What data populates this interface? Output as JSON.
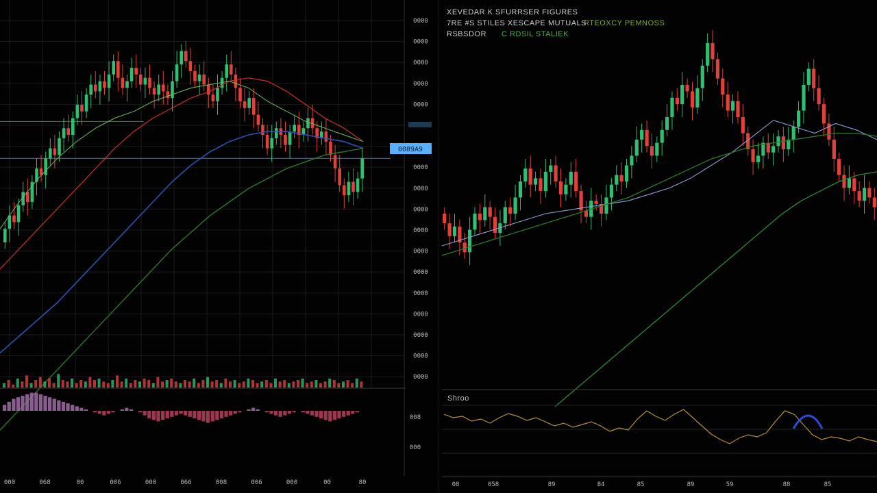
{
  "colors": {
    "background": "#020202",
    "grid": "#1b1b1b",
    "up": "#2fbf71",
    "down": "#e0413a",
    "ma_blue": "#2d54b3",
    "ma_green": "#2f7a2a",
    "ma_red": "#c9302c",
    "ma_light": "#8c9fd6",
    "osc": "#b8923c",
    "price_tag": "#5ab0ff"
  },
  "right_header": {
    "line1": "XEVEDAR K SFURRSER FIGURES",
    "line2a": "7RE #S STILES XESCAPE MUTUALS",
    "line2b": "RTEOXCY PEMNOSS",
    "line3a": "RSBSDOR",
    "line3b": "C RDSIL STALIEK"
  },
  "right_panel_label": "Shroo",
  "chart_data": [
    {
      "type": "candlestick",
      "title": "",
      "price_tag": "0089A9",
      "y_tick_labels": [
        "0000",
        "0000",
        "0000",
        "0000",
        "0000",
        "00000",
        "0000",
        "0000",
        "0000",
        "0000",
        "0000",
        "0000",
        "0000",
        "0000",
        "0000",
        "0000",
        "0000",
        "0000"
      ],
      "osc_tick_labels": [
        "008",
        "000"
      ],
      "x_tick_labels": [
        "000",
        "068",
        "00",
        "006",
        "000",
        "066",
        "008",
        "006",
        "000",
        "00",
        "80"
      ],
      "ylim": [
        0,
        100
      ],
      "grid": true,
      "candles": [
        [
          38,
          42
        ],
        [
          42,
          46
        ],
        [
          46,
          44
        ],
        [
          44,
          49
        ],
        [
          49,
          53
        ],
        [
          53,
          50
        ],
        [
          50,
          56
        ],
        [
          56,
          60
        ],
        [
          60,
          58
        ],
        [
          58,
          63
        ],
        [
          63,
          66
        ],
        [
          66,
          64
        ],
        [
          64,
          69
        ],
        [
          69,
          72
        ],
        [
          72,
          70
        ],
        [
          70,
          75
        ],
        [
          75,
          79
        ],
        [
          79,
          77
        ],
        [
          77,
          82
        ],
        [
          82,
          85
        ],
        [
          85,
          83
        ],
        [
          83,
          86
        ],
        [
          86,
          84
        ],
        [
          84,
          88
        ],
        [
          88,
          92
        ],
        [
          92,
          87
        ],
        [
          87,
          84
        ],
        [
          84,
          86
        ],
        [
          86,
          90
        ],
        [
          90,
          88
        ],
        [
          88,
          85
        ],
        [
          85,
          87
        ],
        [
          87,
          84
        ],
        [
          84,
          82
        ],
        [
          82,
          85
        ],
        [
          85,
          83
        ],
        [
          83,
          81
        ],
        [
          81,
          86
        ],
        [
          86,
          91
        ],
        [
          91,
          95
        ],
        [
          95,
          92
        ],
        [
          92,
          89
        ],
        [
          89,
          86
        ],
        [
          86,
          88
        ],
        [
          88,
          85
        ],
        [
          85,
          82
        ],
        [
          82,
          80
        ],
        [
          80,
          84
        ],
        [
          84,
          87
        ],
        [
          87,
          91
        ],
        [
          91,
          88
        ],
        [
          88,
          84
        ],
        [
          84,
          80
        ],
        [
          80,
          78
        ],
        [
          78,
          81
        ],
        [
          81,
          76
        ],
        [
          76,
          73
        ],
        [
          73,
          70
        ],
        [
          70,
          66
        ],
        [
          66,
          69
        ],
        [
          69,
          72
        ],
        [
          72,
          70
        ],
        [
          70,
          67
        ],
        [
          67,
          71
        ],
        [
          71,
          73
        ],
        [
          73,
          70
        ],
        [
          70,
          72
        ],
        [
          72,
          75
        ],
        [
          75,
          72
        ],
        [
          72,
          69
        ],
        [
          69,
          71
        ],
        [
          71,
          68
        ],
        [
          68,
          64
        ],
        [
          64,
          60
        ],
        [
          60,
          55
        ],
        [
          55,
          52
        ],
        [
          52,
          56
        ],
        [
          56,
          53
        ],
        [
          53,
          57
        ],
        [
          57,
          63
        ]
      ],
      "ma_red": [
        30,
        36,
        42,
        48,
        54,
        60,
        66,
        71,
        75,
        78,
        81,
        83,
        86,
        87,
        86,
        83,
        79,
        75,
        72,
        68
      ],
      "ma_light": [
        42,
        50,
        57,
        63,
        68,
        72,
        75,
        77,
        80,
        82,
        84,
        85,
        86,
        84,
        80,
        77,
        74,
        72,
        70,
        68
      ],
      "ma_blue": [
        5,
        10,
        15,
        20,
        26,
        32,
        38,
        44,
        50,
        56,
        61,
        65,
        68,
        70,
        71,
        71,
        70,
        69,
        68,
        66
      ],
      "ma_green": [
        -18,
        -12,
        -6,
        0,
        6,
        12,
        18,
        24,
        30,
        36,
        41,
        46,
        50,
        54,
        57,
        60,
        62,
        64,
        65,
        66
      ],
      "hline_green": 74,
      "hline_blue": 63,
      "volume": [
        3,
        5,
        2,
        6,
        4,
        8,
        3,
        5,
        7,
        4,
        6,
        3,
        9,
        5,
        4,
        6,
        3,
        5,
        4,
        7,
        5,
        6,
        4,
        3,
        5,
        8,
        4,
        6,
        3,
        5,
        4,
        6,
        5,
        3,
        7,
        4,
        5,
        6,
        4,
        3,
        5,
        4,
        6,
        3,
        5,
        7,
        4,
        5,
        3,
        6,
        4,
        5,
        3,
        4,
        6,
        5,
        3,
        4,
        5,
        3,
        6,
        4,
        5,
        3,
        4,
        5,
        6,
        3,
        4,
        5,
        3,
        4,
        6,
        5,
        3,
        4,
        5,
        3,
        6,
        4
      ],
      "histogram": [
        4,
        6,
        8,
        9,
        10,
        11,
        12,
        12,
        11,
        10,
        9,
        8,
        7,
        6,
        5,
        4,
        3,
        2,
        1,
        0,
        -1,
        -2,
        -3,
        -2,
        -1,
        0,
        1,
        2,
        1,
        0,
        -1,
        -3,
        -5,
        -6,
        -7,
        -6,
        -5,
        -4,
        -3,
        -2,
        -3,
        -4,
        -5,
        -6,
        -7,
        -8,
        -7,
        -6,
        -5,
        -4,
        -3,
        -2,
        -1,
        0,
        1,
        2,
        1,
        0,
        -1,
        -2,
        -3,
        -4,
        -3,
        -2,
        -1,
        0,
        -1,
        -2,
        -3,
        -4,
        -5,
        -6,
        -7,
        -6,
        -5,
        -4,
        -3,
        -2,
        -1,
        0
      ]
    },
    {
      "type": "candlestick",
      "title": "",
      "x_tick_labels": [
        "08",
        "058",
        "89",
        "84",
        "85",
        "89",
        "59",
        "88",
        "85"
      ],
      "ylim": [
        0,
        100
      ],
      "grid": false,
      "candles": [
        [
          40,
          37
        ],
        [
          37,
          33
        ],
        [
          33,
          36
        ],
        [
          36,
          31
        ],
        [
          31,
          28
        ],
        [
          28,
          35
        ],
        [
          35,
          40
        ],
        [
          40,
          38
        ],
        [
          38,
          42
        ],
        [
          42,
          39
        ],
        [
          39,
          34
        ],
        [
          34,
          37
        ],
        [
          37,
          42
        ],
        [
          42,
          40
        ],
        [
          40,
          45
        ],
        [
          45,
          50
        ],
        [
          50,
          54
        ],
        [
          54,
          49
        ],
        [
          49,
          51
        ],
        [
          51,
          47
        ],
        [
          47,
          53
        ],
        [
          53,
          55
        ],
        [
          55,
          50
        ],
        [
          50,
          46
        ],
        [
          46,
          49
        ],
        [
          49,
          53
        ],
        [
          53,
          47
        ],
        [
          47,
          41
        ],
        [
          41,
          39
        ],
        [
          39,
          44
        ],
        [
          44,
          43
        ],
        [
          43,
          40
        ],
        [
          40,
          45
        ],
        [
          45,
          49
        ],
        [
          49,
          52
        ],
        [
          52,
          50
        ],
        [
          50,
          55
        ],
        [
          55,
          58
        ],
        [
          58,
          63
        ],
        [
          63,
          66
        ],
        [
          66,
          61
        ],
        [
          61,
          58
        ],
        [
          58,
          62
        ],
        [
          62,
          66
        ],
        [
          66,
          70
        ],
        [
          70,
          76
        ],
        [
          76,
          74
        ],
        [
          74,
          80
        ],
        [
          80,
          78
        ],
        [
          78,
          73
        ],
        [
          73,
          79
        ],
        [
          79,
          86
        ],
        [
          86,
          93
        ],
        [
          93,
          88
        ],
        [
          88,
          82
        ],
        [
          82,
          77
        ],
        [
          77,
          72
        ],
        [
          72,
          75
        ],
        [
          75,
          70
        ],
        [
          70,
          65
        ],
        [
          65,
          60
        ],
        [
          60,
          56
        ],
        [
          56,
          58
        ],
        [
          58,
          62
        ],
        [
          62,
          59
        ],
        [
          59,
          61
        ],
        [
          61,
          64
        ],
        [
          64,
          60
        ],
        [
          60,
          63
        ],
        [
          63,
          67
        ],
        [
          67,
          72
        ],
        [
          72,
          80
        ],
        [
          80,
          85
        ],
        [
          85,
          79
        ],
        [
          79,
          74
        ],
        [
          74,
          68
        ],
        [
          68,
          63
        ],
        [
          63,
          57
        ],
        [
          57,
          52
        ],
        [
          52,
          48
        ],
        [
          48,
          51
        ],
        [
          51,
          47
        ],
        [
          47,
          44
        ],
        [
          44,
          48
        ],
        [
          48,
          45
        ],
        [
          45,
          42
        ]
      ],
      "ma_light": [
        30,
        32,
        34,
        36,
        38,
        40,
        41,
        42,
        43,
        44,
        46,
        48,
        51,
        55,
        59,
        64,
        69,
        67,
        65,
        68,
        66,
        63
      ],
      "ma_green": [
        27,
        29,
        31,
        33,
        35,
        37,
        39,
        41,
        43,
        45,
        48,
        51,
        54,
        57,
        59,
        61,
        62,
        63,
        64,
        65,
        65,
        64
      ],
      "ma_green2": [
        -20,
        -15,
        -10,
        -5,
        0,
        5,
        10,
        15,
        20,
        25,
        30,
        35,
        40,
        44,
        47,
        50,
        52,
        53
      ],
      "osc": [
        55,
        50,
        52,
        45,
        48,
        42,
        50,
        56,
        52,
        46,
        50,
        44,
        38,
        42,
        36,
        40,
        44,
        38,
        30,
        35,
        32,
        48,
        60,
        52,
        46,
        55,
        62,
        50,
        38,
        26,
        18,
        12,
        20,
        25,
        22,
        28,
        45,
        60,
        55,
        40,
        25,
        18,
        22,
        20,
        16,
        22,
        18,
        15
      ]
    }
  ]
}
